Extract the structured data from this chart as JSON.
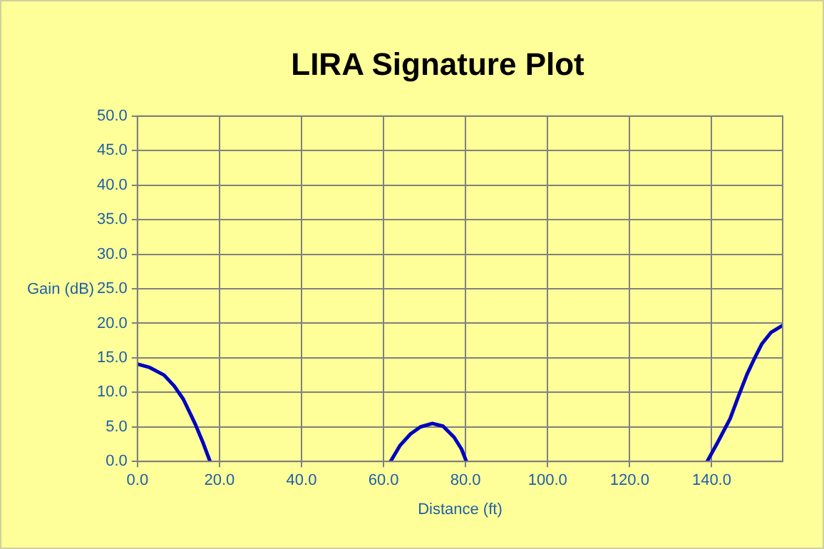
{
  "chart_data": {
    "type": "line",
    "title": "LIRA Signature Plot",
    "xlabel": "Distance (ft)",
    "ylabel": "Gain (dB)",
    "x": [
      0,
      3,
      6.5,
      9,
      11.2,
      14.1,
      16,
      17.7,
      null,
      61.7,
      64,
      66.6,
      69,
      71.9,
      74.5,
      77.2,
      79,
      80.2,
      null,
      138.9,
      141.5,
      144.5,
      146.5,
      148.6,
      150.5,
      152.2,
      154.5,
      157.3
    ],
    "series": [
      {
        "color": "#0000c0",
        "values": [
          14.1,
          13.6,
          12.5,
          10.9,
          9.0,
          5.4,
          2.7,
          0,
          null,
          0,
          2.3,
          4.0,
          5.0,
          5.5,
          5.1,
          3.5,
          1.8,
          0,
          null,
          0,
          2.8,
          6.2,
          9.4,
          12.6,
          15.0,
          17.0,
          18.7,
          19.7
        ]
      }
    ],
    "xlim": [
      0,
      157.3
    ],
    "xticks": [
      {
        "value": 0,
        "label": "0.0"
      },
      {
        "value": 20,
        "label": "20.0"
      },
      {
        "value": 40,
        "label": "40.0"
      },
      {
        "value": 60,
        "label": "60.0"
      },
      {
        "value": 80,
        "label": "80.0"
      },
      {
        "value": 100,
        "label": "100.0"
      },
      {
        "value": 120,
        "label": "120.0"
      },
      {
        "value": 140,
        "label": "140.0"
      }
    ],
    "ylim": [
      0,
      50
    ],
    "yticks": [
      {
        "value": 0,
        "label": "0.0"
      },
      {
        "value": 5,
        "label": "5.0"
      },
      {
        "value": 10,
        "label": "10.0"
      },
      {
        "value": 15,
        "label": "15.0"
      },
      {
        "value": 20,
        "label": "20.0"
      },
      {
        "value": 25,
        "label": "25.0"
      },
      {
        "value": 30,
        "label": "30.0"
      },
      {
        "value": 35,
        "label": "35.0"
      },
      {
        "value": 40,
        "label": "40.0"
      },
      {
        "value": 45,
        "label": "45.0"
      },
      {
        "value": 50,
        "label": "50.0"
      }
    ],
    "grid": true,
    "legend": false,
    "marker": "none",
    "line_style": "solid"
  }
}
